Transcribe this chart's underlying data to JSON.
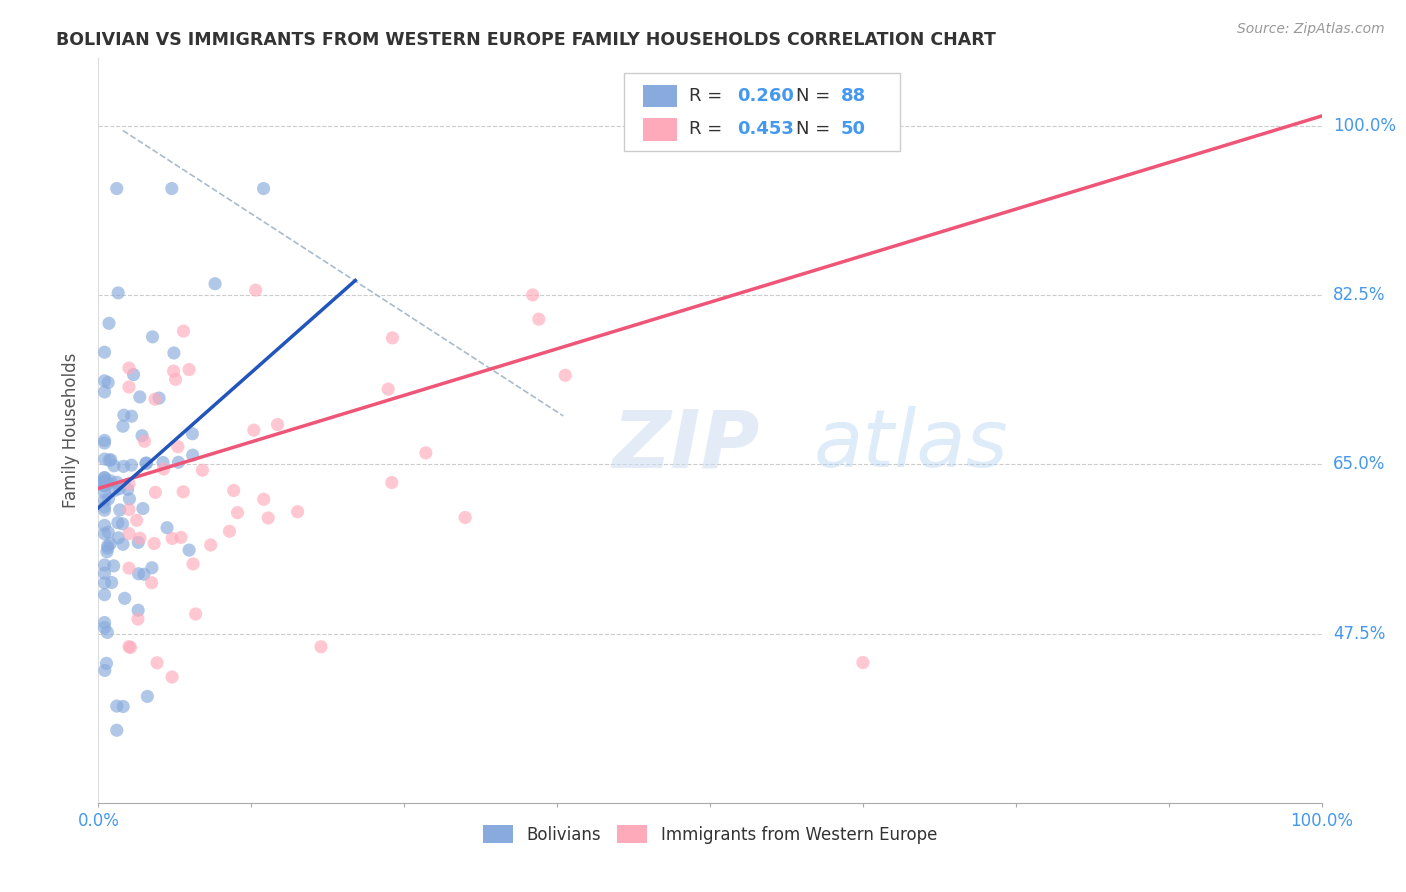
{
  "title": "BOLIVIAN VS IMMIGRANTS FROM WESTERN EUROPE FAMILY HOUSEHOLDS CORRELATION CHART",
  "source": "Source: ZipAtlas.com",
  "ylabel": "Family Households",
  "xlim": [
    0.0,
    1.0
  ],
  "ylim": [
    0.3,
    1.07
  ],
  "yticks": [
    0.475,
    0.65,
    0.825,
    1.0
  ],
  "ytick_labels": [
    "47.5%",
    "65.0%",
    "82.5%",
    "100.0%"
  ],
  "background_color": "#ffffff",
  "grid_color": "#cccccc",
  "blue_color": "#88aadd",
  "pink_color": "#ffaabb",
  "blue_line_color": "#2255bb",
  "pink_line_color": "#ee5577",
  "dashed_line_color": "#aabbcc",
  "label_color": "#4499ee",
  "title_color": "#333333",
  "blue_line_x": [
    0.0,
    0.21
  ],
  "blue_line_y": [
    0.605,
    0.84
  ],
  "pink_line_x": [
    0.0,
    1.0
  ],
  "pink_line_y": [
    0.625,
    1.01
  ],
  "dash_line_x": [
    0.02,
    0.38
  ],
  "dash_line_y": [
    0.995,
    0.7
  ],
  "seed": 42
}
